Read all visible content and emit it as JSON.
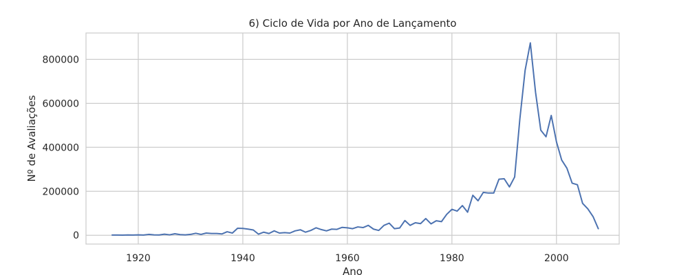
{
  "chart_data": {
    "type": "line",
    "title": "6) Ciclo de Vida por Ano de Lançamento",
    "xlabel": "Ano",
    "ylabel": "Nº de Avaliações",
    "xlim": [
      1910,
      2012
    ],
    "ylim": [
      -40000,
      920000
    ],
    "x_ticks": [
      1920,
      1940,
      1960,
      1980,
      2000
    ],
    "y_ticks": [
      0,
      200000,
      400000,
      600000,
      800000
    ],
    "grid": true,
    "line_color": "#4c72b0",
    "grid_color": "#cccccc",
    "series": [
      {
        "x": [
          1915,
          1916,
          1917,
          1918,
          1919,
          1920,
          1921,
          1922,
          1923,
          1924,
          1925,
          1926,
          1927,
          1928,
          1929,
          1930,
          1931,
          1932,
          1933,
          1934,
          1935,
          1936,
          1937,
          1938,
          1939,
          1940,
          1941,
          1942,
          1943,
          1944,
          1945,
          1946,
          1947,
          1948,
          1949,
          1950,
          1951,
          1952,
          1953,
          1954,
          1955,
          1956,
          1957,
          1958,
          1959,
          1960,
          1961,
          1962,
          1963,
          1964,
          1965,
          1966,
          1967,
          1968,
          1969,
          1970,
          1971,
          1972,
          1973,
          1974,
          1975,
          1976,
          1977,
          1978,
          1979,
          1980,
          1981,
          1982,
          1983,
          1984,
          1985,
          1986,
          1987,
          1988,
          1989,
          1990,
          1991,
          1992,
          1993,
          1994,
          1995,
          1996,
          1997,
          1998,
          1999,
          2000,
          2001,
          2002,
          2003,
          2004,
          2005,
          2006,
          2007,
          2008
        ],
        "y": [
          1000,
          1000,
          800,
          1500,
          1200,
          2000,
          1000,
          4000,
          2000,
          1500,
          5000,
          2000,
          7000,
          3000,
          2000,
          4000,
          9000,
          4000,
          10000,
          8000,
          8000,
          6000,
          16000,
          10000,
          32000,
          31000,
          28000,
          24000,
          5000,
          14000,
          8000,
          20000,
          10000,
          12000,
          10000,
          20000,
          25000,
          14000,
          22000,
          34000,
          26000,
          20000,
          28000,
          27000,
          36000,
          34000,
          30000,
          38000,
          35000,
          45000,
          28000,
          22000,
          45000,
          55000,
          30000,
          33000,
          67000,
          45000,
          57000,
          53000,
          76000,
          52000,
          66000,
          62000,
          95000,
          118000,
          110000,
          135000,
          105000,
          182000,
          157000,
          195000,
          192000,
          192000,
          255000,
          257000,
          220000,
          265000,
          530000,
          750000,
          875000,
          650000,
          478000,
          448000,
          545000,
          425000,
          342000,
          305000,
          237000,
          230000,
          145000,
          120000,
          85000,
          30000
        ]
      }
    ]
  }
}
